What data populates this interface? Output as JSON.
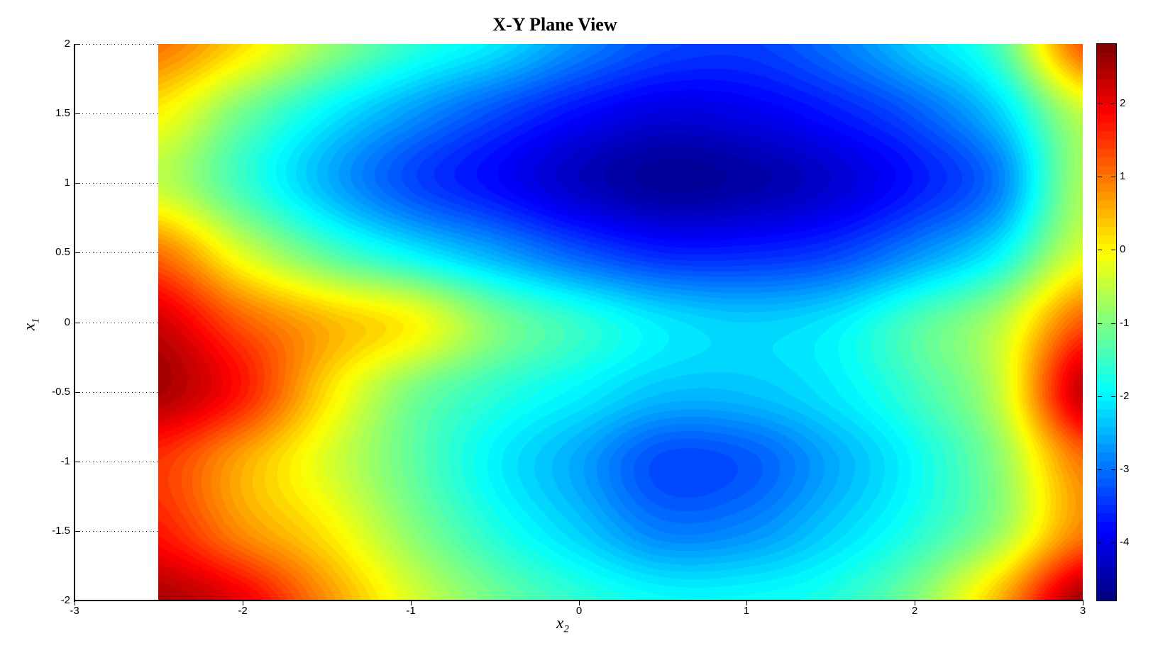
{
  "figure": {
    "title": "X-Y Plane View",
    "xlabel": {
      "base": "x",
      "sub": "2"
    },
    "ylabel": {
      "base": "x",
      "sub": "1"
    }
  },
  "colors": {
    "background": "#ffffff",
    "axis": "#000000",
    "tick_label": "#000000",
    "colormap_name": "jet"
  },
  "chart_data": {
    "type": "heatmap",
    "subtype": "filled-contour-surface-top-view",
    "title": "X-Y Plane View",
    "xlabel": "x_2",
    "ylabel": "x_1",
    "grid": "dotted horizontal gridlines, visible in white gap left of data region",
    "legend_position": "colorbar-right",
    "x_axis": {
      "min": -3,
      "max": 3,
      "tick_values": [
        -3,
        -2,
        -1,
        0,
        1,
        2,
        3
      ],
      "tick_labels": [
        "-3",
        "-2",
        "-1",
        "0",
        "1",
        "2",
        "3"
      ]
    },
    "y_axis": {
      "min": -2,
      "max": 2,
      "tick_values": [
        2,
        1.5,
        1,
        0.5,
        0,
        -0.5,
        -1,
        -1.5,
        -2
      ],
      "tick_labels": [
        "2",
        "1.5",
        "1",
        "0.5",
        "0",
        "-0.5",
        "-1",
        "-1.5",
        "-2"
      ]
    },
    "colorbar": {
      "vmin": -4.79,
      "vmax": 2.81,
      "tick_values": [
        2,
        1,
        0,
        -1,
        -2,
        -3,
        -4
      ],
      "tick_labels": [
        "2",
        "1",
        "0",
        "-1",
        "-2",
        "-3",
        "-4"
      ],
      "colormap": "jet",
      "levels": 64
    },
    "surface": {
      "x": [
        -2.5,
        -2,
        -1.5,
        -1,
        -0.5,
        0,
        0.5,
        1,
        1.5,
        2,
        2.5,
        3
      ],
      "y": [
        2,
        1.5,
        1,
        0.5,
        0,
        -0.5,
        -1,
        -1.5,
        -2
      ],
      "z": [
        [
          1.0,
          0.2,
          -0.8,
          -1.6,
          -2.1,
          -2.8,
          -3.3,
          -3.4,
          -3.0,
          -2.3,
          -1.4,
          1.2
        ],
        [
          0.0,
          -1.1,
          -2.0,
          -2.7,
          -3.3,
          -3.8,
          -4.1,
          -4.0,
          -3.7,
          -3.2,
          -2.3,
          -0.5
        ],
        [
          -0.5,
          -1.5,
          -2.5,
          -3.3,
          -3.8,
          -4.3,
          -4.6,
          -4.5,
          -4.2,
          -3.7,
          -2.9,
          -0.7
        ],
        [
          1.0,
          -0.3,
          -1.3,
          -2.0,
          -2.6,
          -3.2,
          -3.6,
          -3.6,
          -3.4,
          -2.8,
          -2.0,
          -0.3
        ],
        [
          2.2,
          1.2,
          0.5,
          0.0,
          -1.0,
          -1.6,
          -2.1,
          -2.3,
          -2.1,
          -1.4,
          -0.6,
          1.2
        ],
        [
          2.5,
          1.7,
          0.2,
          -1.0,
          -1.6,
          -2.0,
          -2.4,
          -2.4,
          -2.1,
          -1.5,
          -0.5,
          2.3
        ],
        [
          1.5,
          0.6,
          -0.3,
          -1.2,
          -2.0,
          -2.6,
          -3.3,
          -3.2,
          -2.6,
          -1.9,
          -0.9,
          1.0
        ],
        [
          1.7,
          0.8,
          0.1,
          -0.9,
          -1.7,
          -2.3,
          -2.9,
          -2.8,
          -2.3,
          -1.7,
          -0.8,
          0.9
        ],
        [
          2.5,
          2.0,
          0.8,
          -0.3,
          -1.1,
          -1.6,
          -1.9,
          -1.9,
          -1.7,
          -1.0,
          0.5,
          2.6
        ]
      ],
      "extrema": {
        "global_min_approx": {
          "x2": 0.3,
          "x1": 1.05,
          "z": -4.7
        },
        "local_min_approx": {
          "x2": 0.3,
          "x1": -1.25,
          "z": -3.3
        },
        "max_regions": "dark red lobes at left edge (x2=-2.5) and right edge (x2=3) near x1=-0.3, and bottom corners, z up to ~2.7"
      }
    }
  }
}
